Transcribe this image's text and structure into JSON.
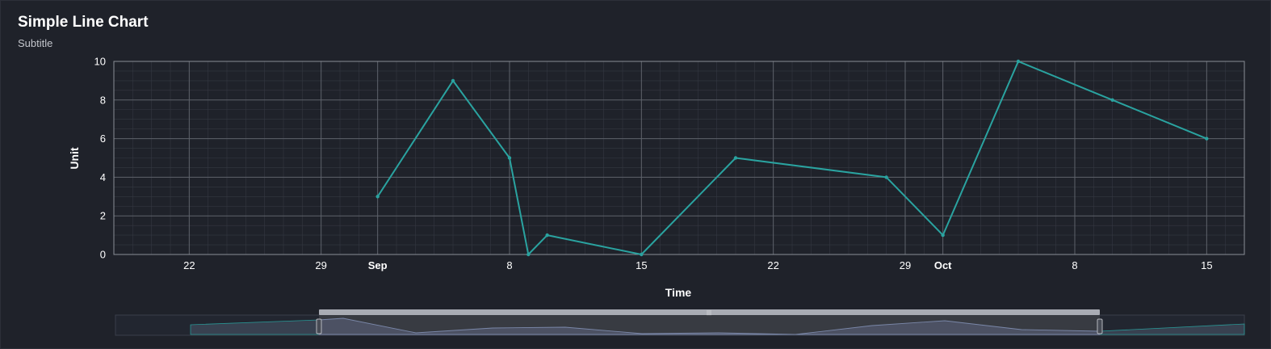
{
  "chart_data": {
    "type": "line",
    "title": "Simple Line Chart",
    "subtitle": "Subtitle",
    "xlabel": "Time",
    "ylabel": "Unit",
    "ylim": [
      0,
      10
    ],
    "xlim": [
      "2021-08-18",
      "2021-10-17"
    ],
    "grid": true,
    "y_ticks": [
      0,
      2,
      4,
      6,
      8,
      10
    ],
    "x_ticks": [
      {
        "date": "2021-08-22",
        "label": "22",
        "major": false
      },
      {
        "date": "2021-08-29",
        "label": "29",
        "major": false
      },
      {
        "date": "2021-09-01",
        "label": "Sep",
        "major": true
      },
      {
        "date": "2021-09-08",
        "label": "8",
        "major": false
      },
      {
        "date": "2021-09-15",
        "label": "15",
        "major": false
      },
      {
        "date": "2021-09-22",
        "label": "22",
        "major": false
      },
      {
        "date": "2021-09-29",
        "label": "29",
        "major": false
      },
      {
        "date": "2021-10-01",
        "label": "Oct",
        "major": true
      },
      {
        "date": "2021-10-08",
        "label": "8",
        "major": false
      },
      {
        "date": "2021-10-15",
        "label": "15",
        "major": false
      }
    ],
    "series": [
      {
        "color": "#2aa3a0",
        "points": [
          {
            "x": "2021-09-01",
            "y": 3
          },
          {
            "x": "2021-09-05",
            "y": 9
          },
          {
            "x": "2021-09-08",
            "y": 5
          },
          {
            "x": "2021-09-09",
            "y": 0
          },
          {
            "x": "2021-09-10",
            "y": 1
          },
          {
            "x": "2021-09-15",
            "y": 0
          },
          {
            "x": "2021-09-20",
            "y": 5
          },
          {
            "x": "2021-09-28",
            "y": 4
          },
          {
            "x": "2021-10-01",
            "y": 1
          },
          {
            "x": "2021-10-05",
            "y": 10
          },
          {
            "x": "2021-10-10",
            "y": 8
          },
          {
            "x": "2021-10-15",
            "y": 6
          }
        ]
      }
    ]
  },
  "colors": {
    "background": "#1f222a",
    "line": "#2aa3a0",
    "grid_major": "#5e626b",
    "grid_minor": "#343842",
    "navigator_fill": "#3d4150",
    "navigator_handle": "#a9acb4"
  }
}
